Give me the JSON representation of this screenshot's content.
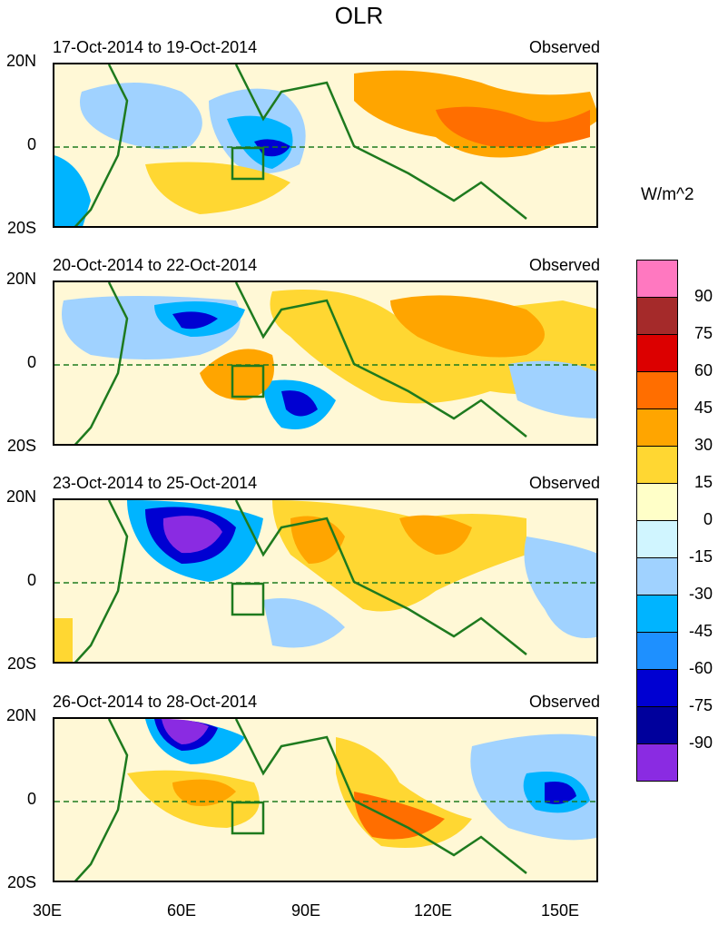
{
  "title": "OLR",
  "units": "W/m^2",
  "panels": [
    {
      "date_range": "17-Oct-2014 to 19-Oct-2014",
      "status": "Observed"
    },
    {
      "date_range": "20-Oct-2014 to 22-Oct-2014",
      "status": "Observed"
    },
    {
      "date_range": "23-Oct-2014 to 25-Oct-2014",
      "status": "Observed"
    },
    {
      "date_range": "26-Oct-2014 to 28-Oct-2014",
      "status": "Observed"
    }
  ],
  "y_labels": [
    "20N",
    "0",
    "20S"
  ],
  "x_labels": [
    "30E",
    "60E",
    "90E",
    "120E",
    "150E"
  ],
  "colorbar": {
    "labels": [
      "90",
      "75",
      "60",
      "45",
      "30",
      "15",
      "0",
      "-15",
      "-30",
      "-45",
      "-60",
      "-75",
      "-90"
    ],
    "colors": [
      "#ff78c0",
      "#a52a2a",
      "#dc0000",
      "#ff6e00",
      "#ffa500",
      "#ffd732",
      "#ffffc8",
      "#d0f5ff",
      "#a0d2ff",
      "#00b4ff",
      "#1e90ff",
      "#0000d2",
      "#00009c",
      "#8a2be2"
    ]
  },
  "fills": {
    "strong_pos": "#ff6e00",
    "pos": "#ffa500",
    "weak_pos": "#ffd732",
    "neutral": "#ffffc8",
    "weak_neg": "#d0f5ff",
    "neg": "#a0d2ff",
    "mid_neg": "#00b4ff",
    "strong_neg": "#0000d2",
    "extreme_neg": "#8a2be2",
    "coast": "#1e7a1e"
  }
}
